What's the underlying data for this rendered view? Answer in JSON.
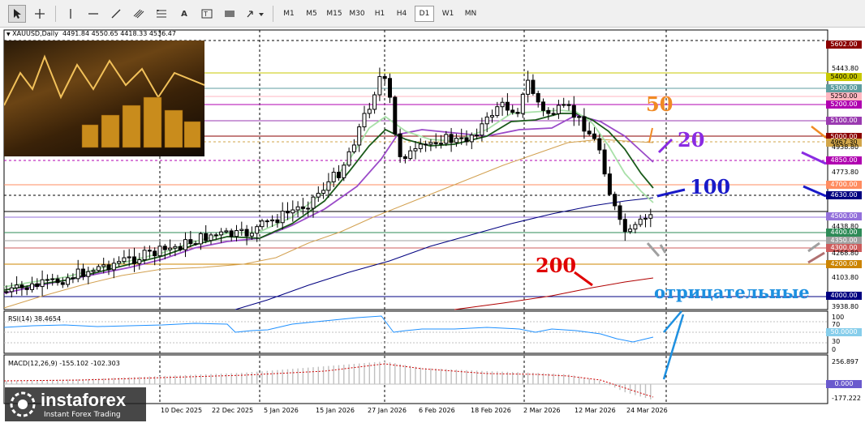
{
  "toolbar": {
    "timeframes": [
      "M1",
      "M5",
      "M15",
      "M30",
      "H1",
      "H4",
      "D1",
      "W1",
      "MN"
    ],
    "active_timeframe": "D1"
  },
  "main_pane": {
    "title": "XAUUSD,Daily",
    "ohlc": "4491.84 4550.65 4418.33 4536.47"
  },
  "rsi_pane": {
    "title": "RSI(14) 38.4654",
    "levels": [
      "100",
      "70",
      "50.0000",
      "30",
      "0"
    ]
  },
  "macd_pane": {
    "title": "MACD(12,26,9) -155.102 -102.303",
    "levels": [
      "256.897",
      "0.000",
      "-177.222"
    ]
  },
  "price_axis": {
    "labels": [
      {
        "text": "5602.00",
        "color": "#8b0000"
      },
      {
        "text": "5443.80",
        "color": ""
      },
      {
        "text": "5400.00",
        "color": "#c8c800"
      },
      {
        "text": "5300.00",
        "color": "#5f9ea0"
      },
      {
        "text": "5250.00",
        "color": "#ffb6c1"
      },
      {
        "text": "5200.00",
        "color": "#b000b0"
      },
      {
        "text": "5100.00",
        "color": "#9a3ab0"
      },
      {
        "text": "5000.00",
        "color": "#8b0000"
      },
      {
        "text": "4967.30",
        "color": "#d2a64a"
      },
      {
        "text": "4938.80",
        "color": ""
      },
      {
        "text": "4850.00",
        "color": "#b000b0"
      },
      {
        "text": "4773.80",
        "color": ""
      },
      {
        "text": "4700.00",
        "color": "#ff8c60"
      },
      {
        "text": "4630.00",
        "color": "#000080"
      },
      {
        "text": "4500.00",
        "color": "#9370db"
      },
      {
        "text": "4438.80",
        "color": ""
      },
      {
        "text": "4400.00",
        "color": "#2e8b57"
      },
      {
        "text": "4350.00",
        "color": "#a0a0a0"
      },
      {
        "text": "4300.00",
        "color": "#cd5c5c"
      },
      {
        "text": "4268.80",
        "color": ""
      },
      {
        "text": "4200.00",
        "color": "#cc8400"
      },
      {
        "text": "4103.80",
        "color": ""
      },
      {
        "text": "4000.00",
        "color": "#000080"
      },
      {
        "text": "3938.80",
        "color": ""
      }
    ]
  },
  "dates": [
    "10 Dec 2025",
    "22 Dec 2025",
    "5 Jan 2026",
    "15 Jan 2026",
    "27 Jan 2026",
    "6 Feb 2026",
    "18 Feb 2026",
    "2 Mar 2026",
    "12 Mar 2026",
    "24 Mar 2026"
  ],
  "annotations": {
    "ma50": "50",
    "ma20": "20",
    "ma100": "100",
    "ma200": "200",
    "negative": "отрицательные"
  },
  "logo": {
    "brand": "instaforex",
    "tagline": "Instant Forex Trading"
  },
  "colors": {
    "ma50": "#f08a24",
    "ma20": "#8a2be2",
    "ma100": "#1a1ac8",
    "ma200": "#e00000",
    "negative": "#1e90e0"
  }
}
